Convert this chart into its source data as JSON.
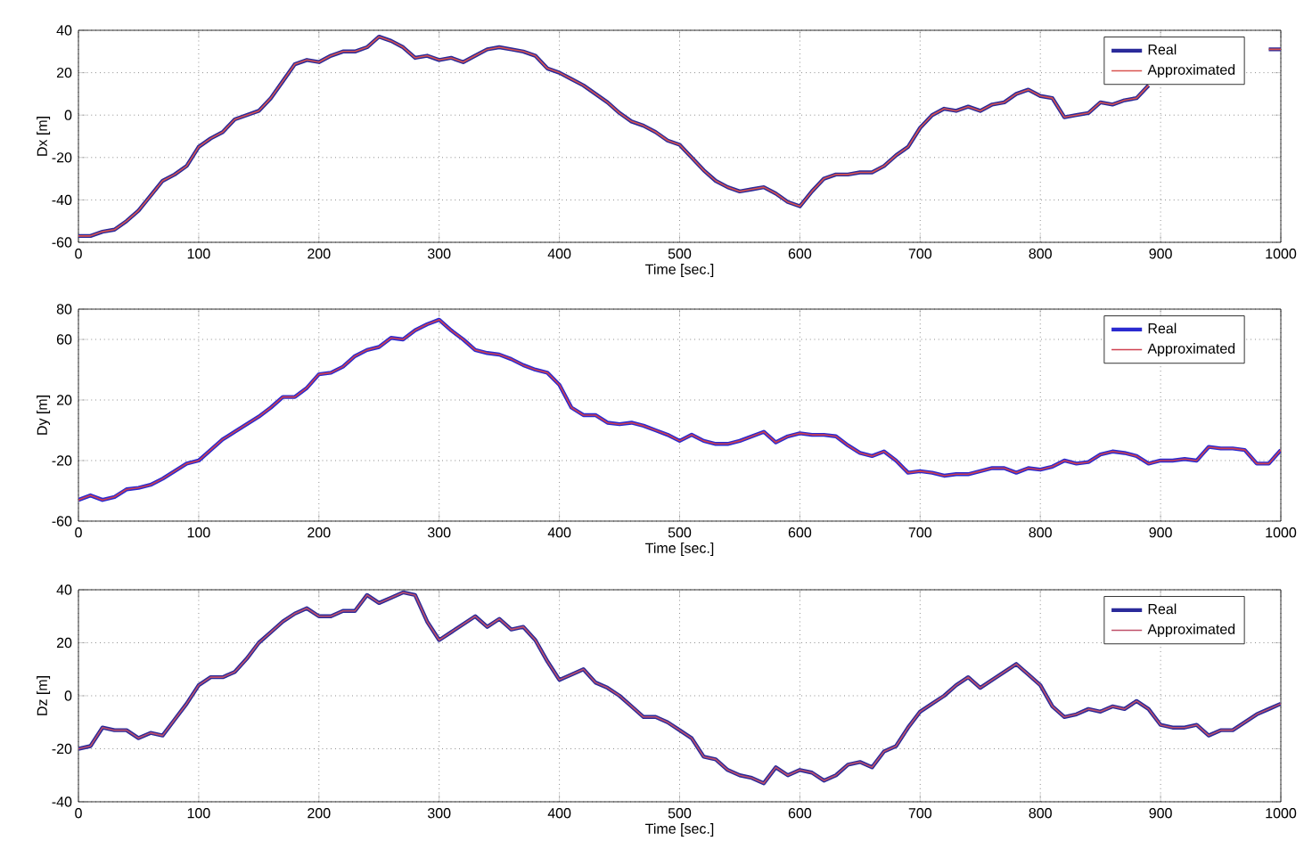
{
  "chart_data": [
    {
      "type": "line",
      "xlabel": "Time [sec.]",
      "ylabel": "Dx [m]",
      "xlim": [
        0,
        1000
      ],
      "ylim": [
        -60,
        40
      ],
      "xticks": [
        0,
        100,
        200,
        300,
        400,
        500,
        600,
        700,
        800,
        900,
        1000
      ],
      "yticks": [
        -60,
        -40,
        -20,
        0,
        20,
        40
      ],
      "grid": true,
      "legend": "top right",
      "line_style": "solid",
      "x": [
        0,
        10,
        20,
        30,
        40,
        50,
        60,
        70,
        80,
        90,
        100,
        110,
        120,
        130,
        140,
        150,
        160,
        170,
        180,
        190,
        200,
        210,
        220,
        230,
        240,
        250,
        260,
        270,
        280,
        290,
        300,
        310,
        320,
        330,
        340,
        350,
        360,
        370,
        380,
        390,
        400,
        410,
        420,
        430,
        440,
        450,
        460,
        470,
        480,
        490,
        500,
        510,
        520,
        530,
        540,
        550,
        560,
        570,
        580,
        590,
        600,
        610,
        620,
        630,
        640,
        650,
        660,
        670,
        680,
        690,
        700,
        710,
        720,
        730,
        740,
        750,
        760,
        770,
        780,
        790,
        800,
        810,
        820,
        830,
        840,
        850,
        860,
        870,
        880,
        890,
        900,
        910,
        920,
        930,
        940,
        950,
        960,
        970,
        980,
        990,
        1000
      ],
      "series": [
        {
          "name": "Real",
          "color": "#2a2a9a",
          "values": [
            -57,
            -57,
            -55,
            -54,
            -50,
            -45,
            -38,
            -31,
            -28,
            -24,
            -15,
            -11,
            -8,
            -2,
            0,
            2,
            8,
            16,
            24,
            26,
            25,
            28,
            30,
            30,
            32,
            37,
            35,
            32,
            27,
            28,
            26,
            27,
            25,
            28,
            31,
            32,
            31,
            30,
            28,
            22,
            20,
            17,
            14,
            10,
            6,
            1,
            -3,
            -5,
            -8,
            -12,
            -14,
            -20,
            -26,
            -31,
            -34,
            -36,
            -35,
            -34,
            -37,
            -41,
            -43,
            -36,
            -30,
            -28,
            -28,
            -27,
            -27,
            -24,
            -19,
            -15,
            -6,
            0,
            3,
            2,
            4,
            2,
            5,
            6,
            10,
            12,
            9,
            8,
            -1,
            0,
            1,
            6,
            5,
            7,
            8,
            14,
            null,
            null,
            null,
            null,
            null,
            null,
            null,
            null,
            null,
            31,
            31
          ]
        },
        {
          "name": "Approximated",
          "color": "#d9534f",
          "values": [
            -57,
            -57,
            -55,
            -54,
            -50,
            -45,
            -38,
            -31,
            -28,
            -24,
            -15,
            -11,
            -8,
            -2,
            0,
            2,
            8,
            16,
            24,
            26,
            25,
            28,
            30,
            30,
            32,
            37,
            35,
            32,
            27,
            28,
            26,
            27,
            25,
            28,
            31,
            32,
            31,
            30,
            28,
            22,
            20,
            17,
            14,
            10,
            6,
            1,
            -3,
            -5,
            -8,
            -12,
            -14,
            -20,
            -26,
            -31,
            -34,
            -36,
            -35,
            -34,
            -37,
            -41,
            -43,
            -36,
            -30,
            -28,
            -28,
            -27,
            -27,
            -24,
            -19,
            -15,
            -6,
            0,
            3,
            2,
            4,
            2,
            5,
            6,
            10,
            12,
            9,
            8,
            -1,
            0,
            1,
            6,
            5,
            7,
            8,
            14,
            null,
            null,
            null,
            null,
            null,
            null,
            null,
            null,
            null,
            31,
            31
          ]
        }
      ]
    },
    {
      "type": "line",
      "xlabel": "Time [sec.]",
      "ylabel": "Dy [m]",
      "xlim": [
        0,
        1000
      ],
      "ylim": [
        -60,
        80
      ],
      "xticks": [
        0,
        100,
        200,
        300,
        400,
        500,
        600,
        700,
        800,
        900,
        1000
      ],
      "yticks": [
        -60,
        -20,
        20,
        60,
        80
      ],
      "grid": true,
      "legend": "top right",
      "line_style": "solid",
      "x": [
        0,
        10,
        20,
        30,
        40,
        50,
        60,
        70,
        80,
        90,
        100,
        110,
        120,
        130,
        140,
        150,
        160,
        170,
        180,
        190,
        200,
        210,
        220,
        230,
        240,
        250,
        260,
        270,
        280,
        290,
        300,
        310,
        320,
        330,
        340,
        350,
        360,
        370,
        380,
        390,
        400,
        410,
        420,
        430,
        440,
        450,
        460,
        470,
        480,
        490,
        500,
        510,
        520,
        530,
        540,
        550,
        560,
        570,
        580,
        590,
        600,
        610,
        620,
        630,
        640,
        650,
        660,
        670,
        680,
        690,
        700,
        710,
        720,
        730,
        740,
        750,
        760,
        770,
        780,
        790,
        800,
        810,
        820,
        830,
        840,
        850,
        860,
        870,
        880,
        890,
        900,
        910,
        920,
        930,
        940,
        950,
        960,
        970,
        980,
        990,
        1000
      ],
      "series": [
        {
          "name": "Real",
          "color": "#2a2ad0",
          "values": [
            -46,
            -43,
            -46,
            -44,
            -39,
            -38,
            -36,
            -32,
            -27,
            -22,
            -20,
            -13,
            -6,
            -1,
            4,
            9,
            15,
            22,
            22,
            28,
            37,
            38,
            42,
            49,
            53,
            55,
            61,
            60,
            66,
            70,
            73,
            66,
            60,
            53,
            51,
            50,
            47,
            43,
            40,
            38,
            30,
            15,
            10,
            10,
            5,
            4,
            5,
            3,
            0,
            -3,
            -7,
            -3,
            -7,
            -9,
            -9,
            -7,
            -4,
            -1,
            -8,
            -4,
            -2,
            -3,
            -3,
            -4,
            -10,
            -15,
            -17,
            -14,
            -20,
            -28,
            -27,
            -28,
            -30,
            -29,
            -29,
            -27,
            -25,
            -25,
            -28,
            -25,
            -26,
            -24,
            -20,
            -22,
            -21,
            -16,
            -14,
            -15,
            -17,
            -22,
            -20,
            -20,
            -19,
            -20,
            -11,
            -12,
            -12,
            -13,
            -22,
            -22,
            -13
          ]
        },
        {
          "name": "Approximated",
          "color": "#d04050",
          "values": [
            -46,
            -43,
            -46,
            -44,
            -39,
            -38,
            -36,
            -32,
            -27,
            -22,
            -20,
            -13,
            -6,
            -1,
            4,
            9,
            15,
            22,
            22,
            28,
            37,
            38,
            42,
            49,
            53,
            55,
            61,
            60,
            66,
            70,
            73,
            66,
            60,
            53,
            51,
            50,
            47,
            43,
            40,
            38,
            30,
            15,
            10,
            10,
            5,
            4,
            5,
            3,
            0,
            -3,
            -7,
            -3,
            -7,
            -9,
            -9,
            -7,
            -4,
            -1,
            -8,
            -4,
            -2,
            -3,
            -3,
            -4,
            -10,
            -15,
            -17,
            -14,
            -20,
            -28,
            -27,
            -28,
            -30,
            -29,
            -29,
            -27,
            -25,
            -25,
            -28,
            -25,
            -26,
            -24,
            -20,
            -22,
            -21,
            -16,
            -14,
            -15,
            -17,
            -22,
            -20,
            -20,
            -19,
            -20,
            -11,
            -12,
            -12,
            -13,
            -22,
            -22,
            -13
          ]
        }
      ]
    },
    {
      "type": "line",
      "xlabel": "Time [sec.]",
      "ylabel": "Dz [m]",
      "xlim": [
        0,
        1000
      ],
      "ylim": [
        -40,
        40
      ],
      "xticks": [
        0,
        100,
        200,
        300,
        400,
        500,
        600,
        700,
        800,
        900,
        1000
      ],
      "yticks": [
        -40,
        -20,
        0,
        20,
        40
      ],
      "grid": true,
      "legend": "top right",
      "line_style": "solid",
      "x": [
        0,
        10,
        20,
        30,
        40,
        50,
        60,
        70,
        80,
        90,
        100,
        110,
        120,
        130,
        140,
        150,
        160,
        170,
        180,
        190,
        200,
        210,
        220,
        230,
        240,
        250,
        260,
        270,
        280,
        290,
        300,
        310,
        320,
        330,
        340,
        350,
        360,
        370,
        380,
        390,
        400,
        410,
        420,
        430,
        440,
        450,
        460,
        470,
        480,
        490,
        500,
        510,
        520,
        530,
        540,
        550,
        560,
        570,
        580,
        590,
        600,
        610,
        620,
        630,
        640,
        650,
        660,
        670,
        680,
        690,
        700,
        710,
        720,
        730,
        740,
        750,
        760,
        770,
        780,
        790,
        800,
        810,
        820,
        830,
        840,
        850,
        860,
        870,
        880,
        890,
        900,
        910,
        920,
        930,
        940,
        950,
        960,
        970,
        980,
        990,
        1000
      ],
      "series": [
        {
          "name": "Real",
          "color": "#2a2a9a",
          "values": [
            -20,
            -19,
            -12,
            -13,
            -13,
            -16,
            -14,
            -15,
            -9,
            -3,
            4,
            7,
            7,
            9,
            14,
            20,
            24,
            28,
            31,
            33,
            30,
            30,
            32,
            32,
            38,
            35,
            37,
            39,
            38,
            28,
            21,
            24,
            27,
            30,
            26,
            29,
            25,
            26,
            21,
            13,
            6,
            8,
            10,
            5,
            3,
            0,
            -4,
            -8,
            -8,
            -10,
            -13,
            -16,
            -23,
            -24,
            -28,
            -30,
            -31,
            -33,
            -27,
            -30,
            -28,
            -29,
            -32,
            -30,
            -26,
            -25,
            -27,
            -21,
            -19,
            -12,
            -6,
            -3,
            0,
            4,
            7,
            3,
            6,
            9,
            12,
            8,
            4,
            -4,
            -8,
            -7,
            -5,
            -6,
            -4,
            -5,
            -2,
            -5,
            -11,
            -12,
            -12,
            -11,
            -15,
            -13,
            -13,
            -10,
            -7,
            -5,
            -3
          ]
        },
        {
          "name": "Approximated",
          "color": "#c0506a",
          "values": [
            -20,
            -19,
            -12,
            -13,
            -13,
            -16,
            -14,
            -15,
            -9,
            -3,
            4,
            7,
            7,
            9,
            14,
            20,
            24,
            28,
            31,
            33,
            30,
            30,
            32,
            32,
            38,
            35,
            37,
            39,
            38,
            28,
            21,
            24,
            27,
            30,
            26,
            29,
            25,
            26,
            21,
            13,
            6,
            8,
            10,
            5,
            3,
            0,
            -4,
            -8,
            -8,
            -10,
            -13,
            -16,
            -23,
            -24,
            -28,
            -30,
            -31,
            -33,
            -27,
            -30,
            -28,
            -29,
            -32,
            -30,
            -26,
            -25,
            -27,
            -21,
            -19,
            -12,
            -6,
            -3,
            0,
            4,
            7,
            3,
            6,
            9,
            12,
            8,
            4,
            -4,
            -8,
            -7,
            -5,
            -6,
            -4,
            -5,
            -2,
            -5,
            -11,
            -12,
            -12,
            -11,
            -15,
            -13,
            -13,
            -10,
            -7,
            -5,
            -3
          ]
        }
      ]
    }
  ]
}
